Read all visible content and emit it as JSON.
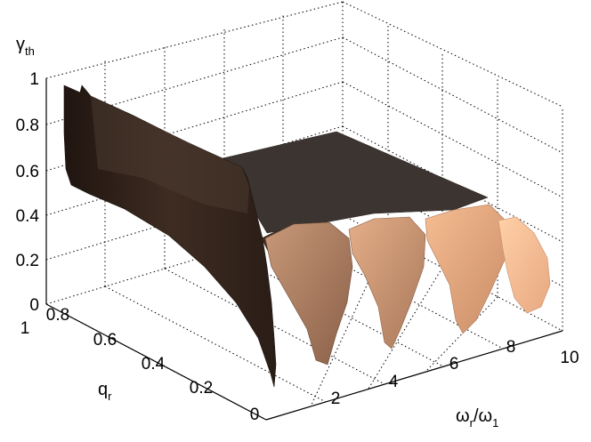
{
  "chart_data": {
    "type": "surface",
    "title": "",
    "axes": {
      "z": {
        "label_symbol": "γ",
        "label_subscript": "th",
        "ticks": [
          "0",
          "0.2",
          "0.4",
          "0.6",
          "0.8",
          "1"
        ],
        "range": [
          0,
          1
        ]
      },
      "y": {
        "label_symbol": "q",
        "label_subscript": "r",
        "ticks": [
          "0",
          "0.2",
          "0.4",
          "0.6",
          "0.8",
          "1"
        ],
        "range": [
          0,
          1
        ]
      },
      "x": {
        "label_main": "ω",
        "label_subscript_1": "r",
        "label_mid": "/ω",
        "label_subscript_2": "1",
        "ticks": [
          "2",
          "4",
          "6",
          "8",
          "10"
        ],
        "range": [
          1,
          10
        ]
      }
    },
    "grid": true,
    "colormap": "copper",
    "lobes": [
      {
        "x_center": 2,
        "min_gamma": 0.0,
        "max_gamma": 1.0
      },
      {
        "x_center": 4,
        "min_gamma": 0.08,
        "max_gamma": 0.55
      },
      {
        "x_center": 6,
        "min_gamma": 0.12,
        "max_gamma": 0.55
      },
      {
        "x_center": 8,
        "min_gamma": 0.15,
        "max_gamma": 0.55
      },
      {
        "x_center": 10,
        "min_gamma": 0.18,
        "max_gamma": 0.55
      }
    ]
  }
}
